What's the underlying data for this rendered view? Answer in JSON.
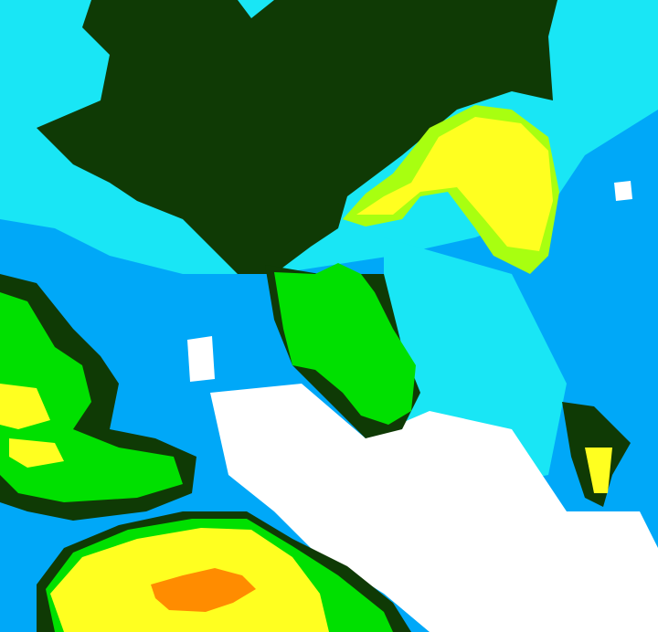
{
  "image": {
    "kind": "classified satellite raster",
    "palette": {
      "dark_green": "#0f3a05",
      "cyan": "#19e6f5",
      "light_blue": "#00a8f8",
      "white": "#ffffff",
      "green": "#00e000",
      "yellow_green": "#a8ff10",
      "yellow": "#ffff20",
      "orange": "#ff8c00"
    }
  }
}
